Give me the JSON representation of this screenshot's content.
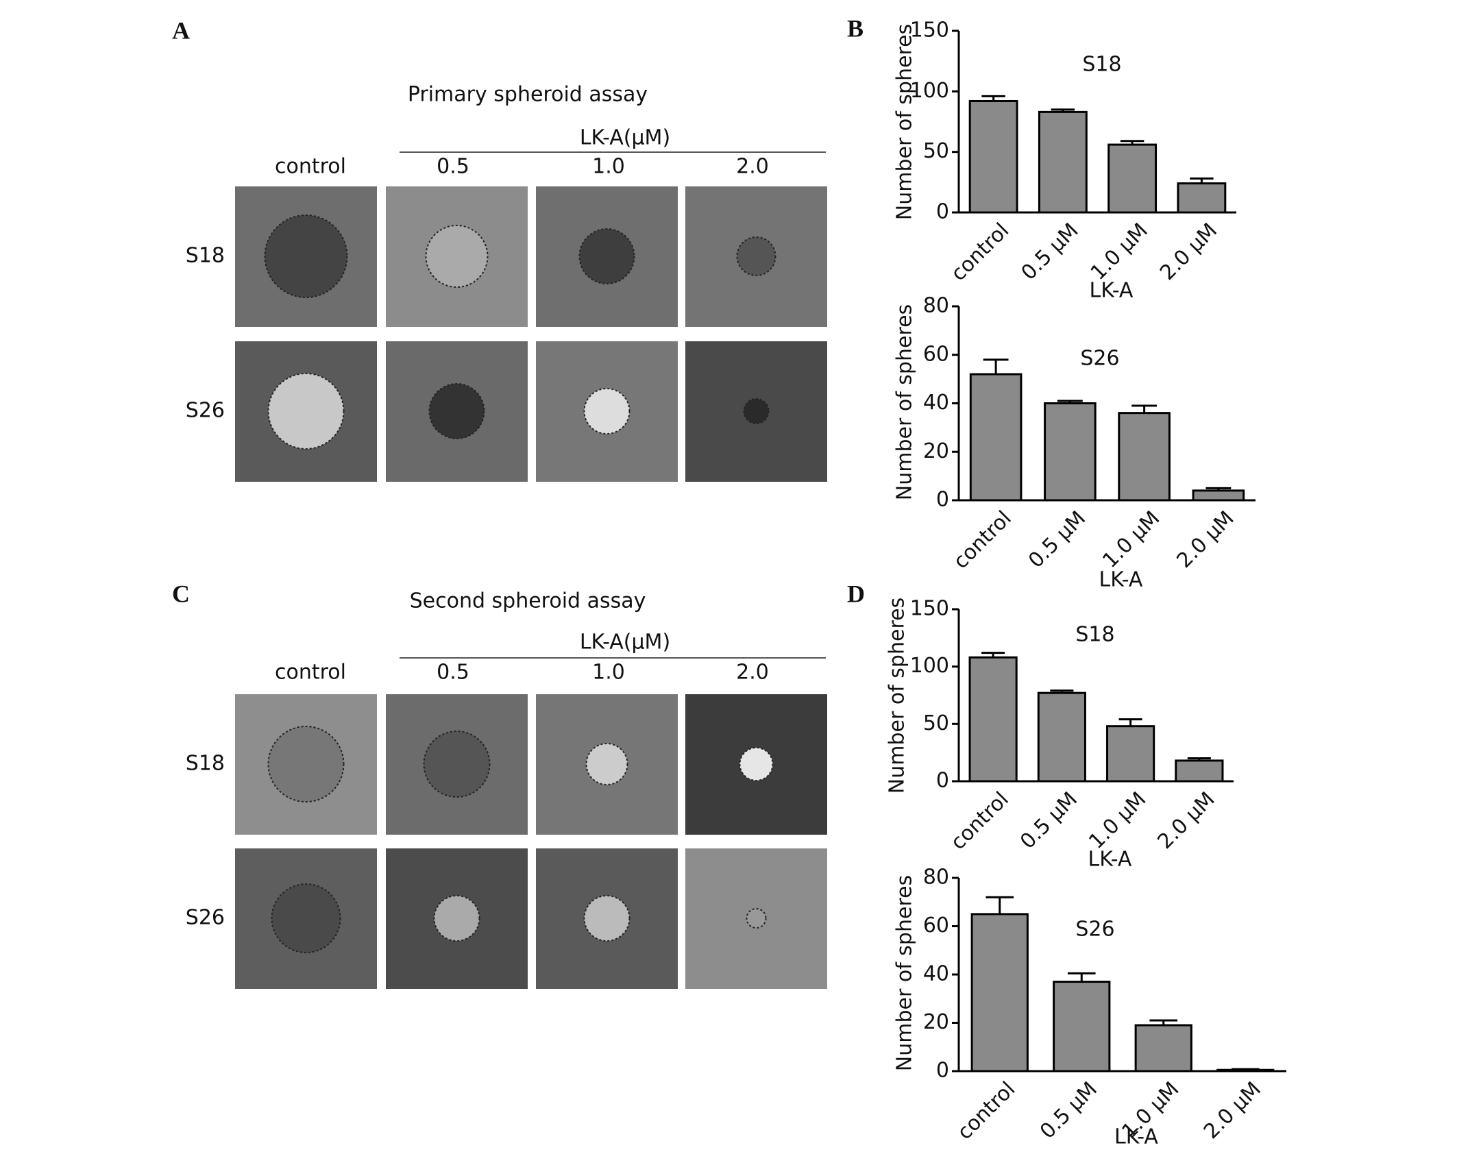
{
  "panels": {
    "A": {
      "letter": "A",
      "title": "Primary spheroid assay",
      "group_label": "LK-A(μM)",
      "columns": [
        "control",
        "0.5",
        "1.0",
        "2.0"
      ],
      "rows": [
        "S18",
        "S26"
      ]
    },
    "B": {
      "letter": "B"
    },
    "C": {
      "letter": "C",
      "title": "Second spheroid assay",
      "group_label": "LK-A(μM)",
      "columns": [
        "control",
        "0.5",
        "1.0",
        "2.0"
      ],
      "rows": [
        "S18",
        "S26"
      ]
    },
    "D": {
      "letter": "D"
    }
  },
  "chart_data": [
    {
      "type": "bar",
      "title": "S18",
      "ylabel": "Number of spheres",
      "xlabel": "LK-A",
      "categories": [
        "control",
        "0.5 μM",
        "1.0 μM",
        "2.0 μM"
      ],
      "values": [
        92,
        83,
        56,
        24
      ],
      "errors": [
        4,
        2,
        3,
        4
      ],
      "color": "#8a8a8a",
      "ylim": [
        0,
        150
      ],
      "yticks": [
        0,
        50,
        100,
        150
      ]
    },
    {
      "type": "bar",
      "title": "S26",
      "ylabel": "Number of spheres",
      "xlabel": "LK-A",
      "categories": [
        "control",
        "0.5 μM",
        "1.0 μM",
        "2.0 μM"
      ],
      "values": [
        52,
        40,
        36,
        4
      ],
      "errors": [
        6,
        1,
        3,
        1
      ],
      "color": "#8a8a8a",
      "ylim": [
        0,
        80
      ],
      "yticks": [
        0,
        20,
        40,
        60,
        80
      ]
    },
    {
      "type": "bar",
      "title": "S18",
      "ylabel": "Number of spheres",
      "xlabel": "LK-A",
      "categories": [
        "control",
        "0.5 μM",
        "1.0 μM",
        "2.0 μM"
      ],
      "values": [
        108,
        77,
        48,
        18
      ],
      "errors": [
        4,
        2,
        6,
        2
      ],
      "color": "#8a8a8a",
      "ylim": [
        0,
        150
      ],
      "yticks": [
        0,
        50,
        100,
        150
      ]
    },
    {
      "type": "bar",
      "title": "S26",
      "ylabel": "Number of spheres",
      "xlabel": "LK-A",
      "categories": [
        "control",
        "0.5 μM",
        "1.0 μM",
        "2.0 μM"
      ],
      "values": [
        65,
        37,
        19,
        0.5
      ],
      "errors": [
        7,
        3.5,
        2,
        0.3
      ],
      "color": "#8a8a8a",
      "ylim": [
        0,
        80
      ],
      "yticks": [
        0,
        20,
        40,
        60,
        80
      ]
    }
  ]
}
